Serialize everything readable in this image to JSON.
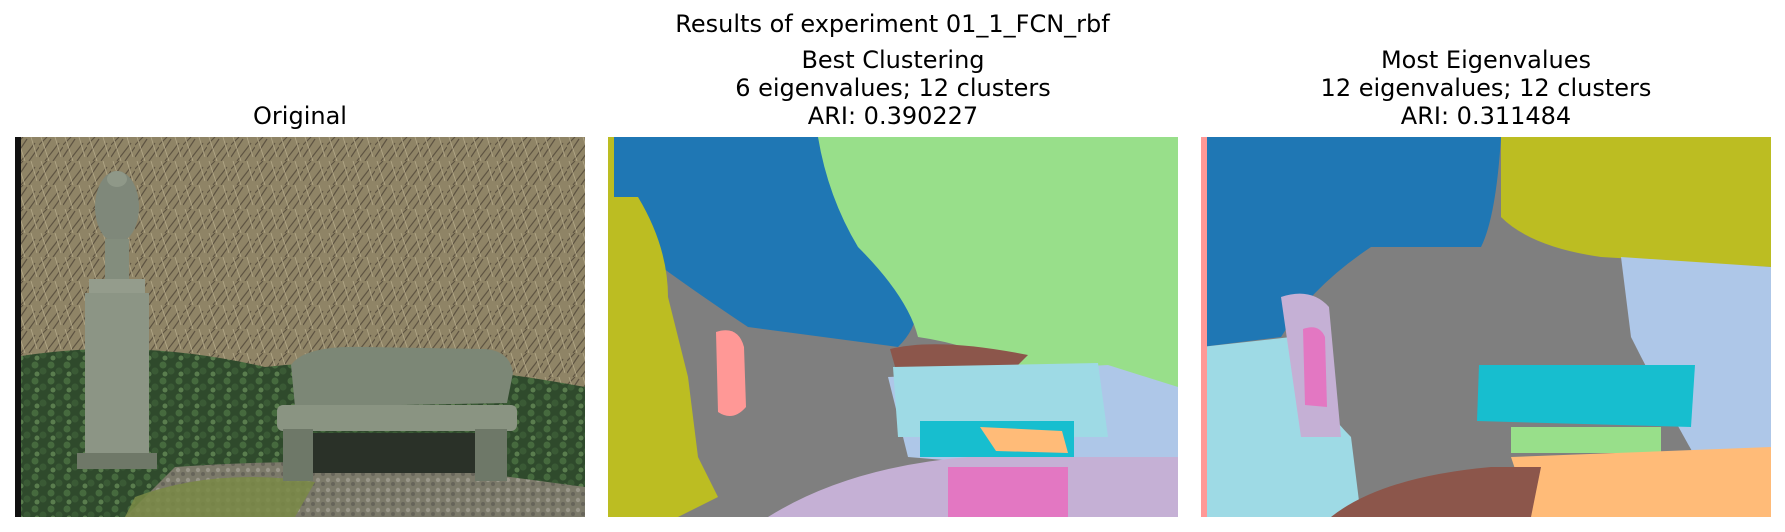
{
  "figure": {
    "suptitle": "Results of experiment 01_1_FCN_rbf"
  },
  "panels": [
    {
      "title_lines": [
        "Original"
      ]
    },
    {
      "title_lines": [
        "Best Clustering",
        "6 eigenvalues; 12 clusters",
        "ARI: 0.390227"
      ]
    },
    {
      "title_lines": [
        "Most Eigenvalues",
        "12 eigenvalues; 12 clusters",
        "ARI: 0.311484"
      ]
    }
  ],
  "colors": {
    "blue": "#1f77b4",
    "lightgreen": "#98df8a",
    "olive": "#bcbd22",
    "gray": "#7f7f7f",
    "pink": "#ff9896",
    "brown": "#8c564b",
    "lightblue": "#9edae5",
    "cyan": "#17becf",
    "orange": "#ffbb78",
    "magenta": "#e377c2",
    "lavender": "#c5b0d5",
    "periwinkle": "#aec7e8"
  }
}
